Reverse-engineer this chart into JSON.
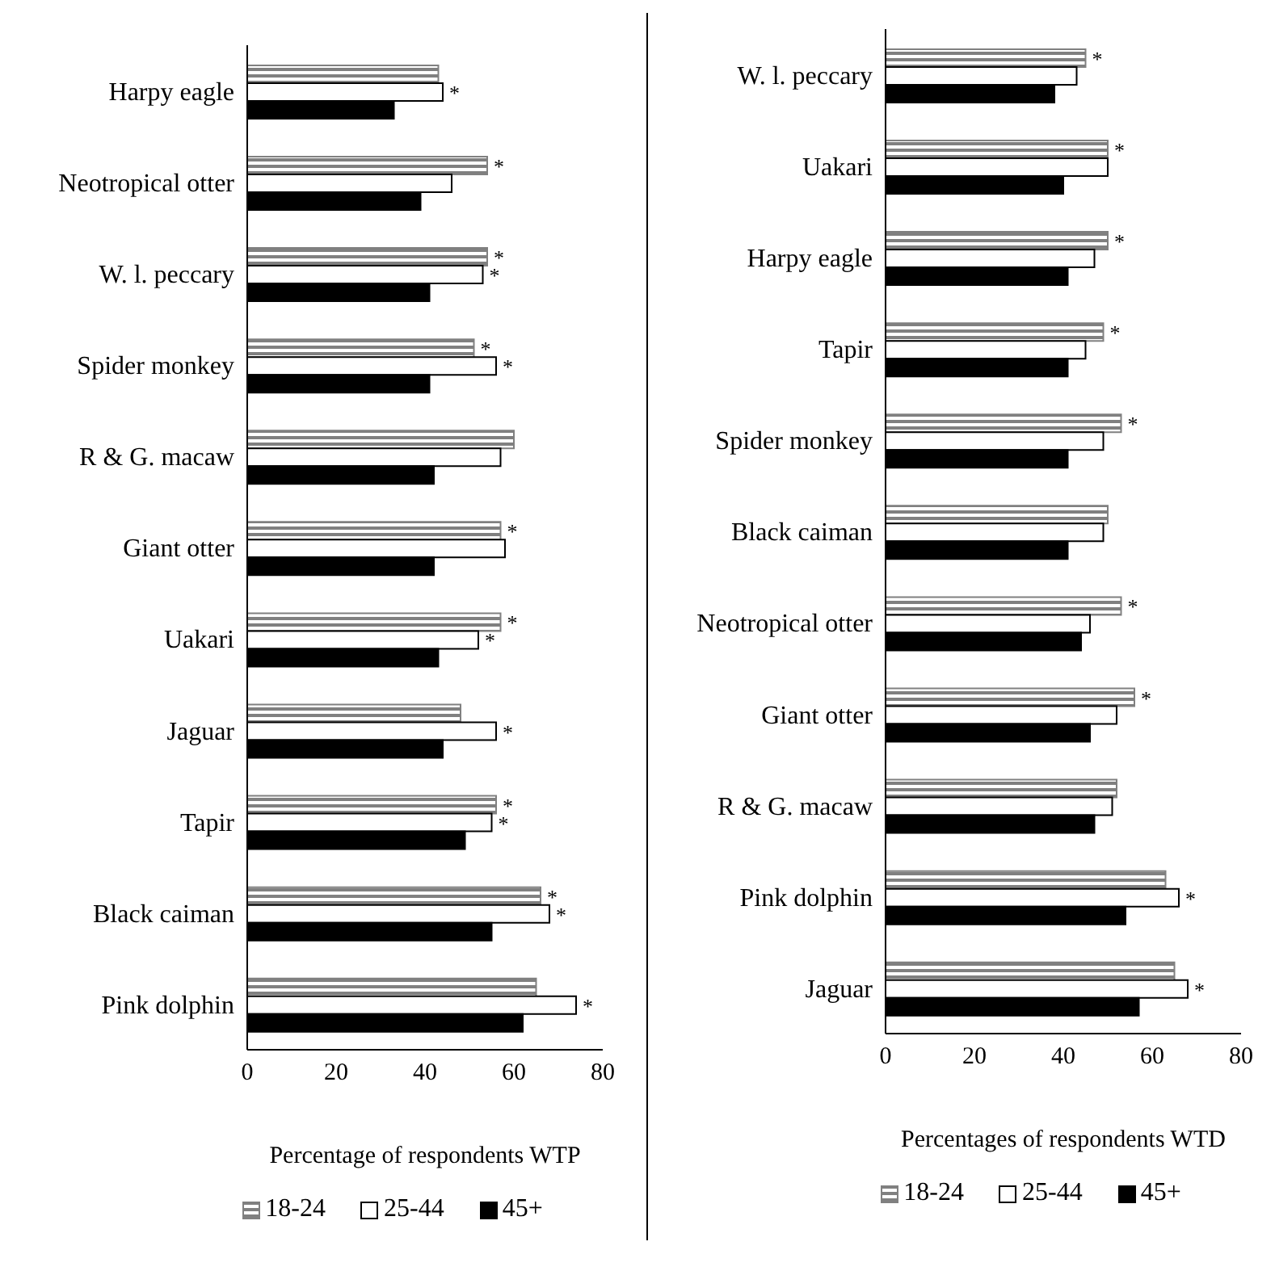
{
  "chart_data": [
    {
      "type": "bar",
      "orientation": "horizontal",
      "xlabel": "Percentage of respondents WTP",
      "categories": [
        "Harpy eagle",
        "Neotropical otter",
        "W. l. peccary",
        "Spider monkey",
        "R & G. macaw",
        "Giant otter",
        "Uakari",
        "Jaguar",
        "Tapir",
        "Black caiman",
        "Pink dolphin"
      ],
      "xlim": [
        0,
        80
      ],
      "xticks": [
        0,
        20,
        40,
        60,
        80
      ],
      "grid": false,
      "legend": "bottom",
      "series": [
        {
          "name": "18-24",
          "color": "#808080",
          "values": [
            43,
            54,
            54,
            51,
            60,
            57,
            57,
            48,
            56,
            66,
            65
          ],
          "value_labels": [
            null,
            "*",
            "*",
            "*",
            null,
            "*",
            "*",
            null,
            "*",
            "*",
            null
          ]
        },
        {
          "name": "25-44",
          "color": "#ffffff",
          "values": [
            44,
            46,
            53,
            56,
            57,
            58,
            52,
            56,
            55,
            68,
            74
          ],
          "value_labels": [
            "*",
            null,
            "*",
            "*",
            null,
            null,
            "*",
            "*",
            "*",
            "*",
            "*"
          ]
        },
        {
          "name": "45+",
          "color": "#000000",
          "values": [
            33,
            39,
            41,
            41,
            42,
            42,
            43,
            44,
            49,
            55,
            62
          ]
        }
      ]
    },
    {
      "type": "bar",
      "orientation": "horizontal",
      "xlabel": "Percentages of respondents WTD",
      "categories": [
        "W. l. peccary",
        "Uakari",
        "Harpy eagle",
        "Tapir",
        "Spider monkey",
        "Black caiman",
        "Neotropical otter",
        "Giant otter",
        "R & G. macaw",
        "Pink dolphin",
        "Jaguar"
      ],
      "xlim": [
        0,
        80
      ],
      "xticks": [
        0,
        20,
        40,
        60,
        80
      ],
      "grid": false,
      "legend": "bottom",
      "series": [
        {
          "name": "18-24",
          "color": "#808080",
          "values": [
            45,
            50,
            50,
            49,
            53,
            50,
            53,
            56,
            52,
            63,
            65
          ],
          "value_labels": [
            "*",
            "*",
            "*",
            "*",
            "*",
            null,
            "*",
            "*",
            null,
            null,
            null
          ]
        },
        {
          "name": "25-44",
          "color": "#ffffff",
          "values": [
            43,
            50,
            47,
            45,
            49,
            49,
            46,
            52,
            51,
            66,
            68
          ],
          "value_labels": [
            null,
            null,
            null,
            null,
            null,
            null,
            null,
            null,
            null,
            "*",
            "*"
          ]
        },
        {
          "name": "45+",
          "color": "#000000",
          "values": [
            38,
            40,
            41,
            41,
            41,
            41,
            44,
            46,
            47,
            54,
            57
          ]
        }
      ]
    }
  ]
}
